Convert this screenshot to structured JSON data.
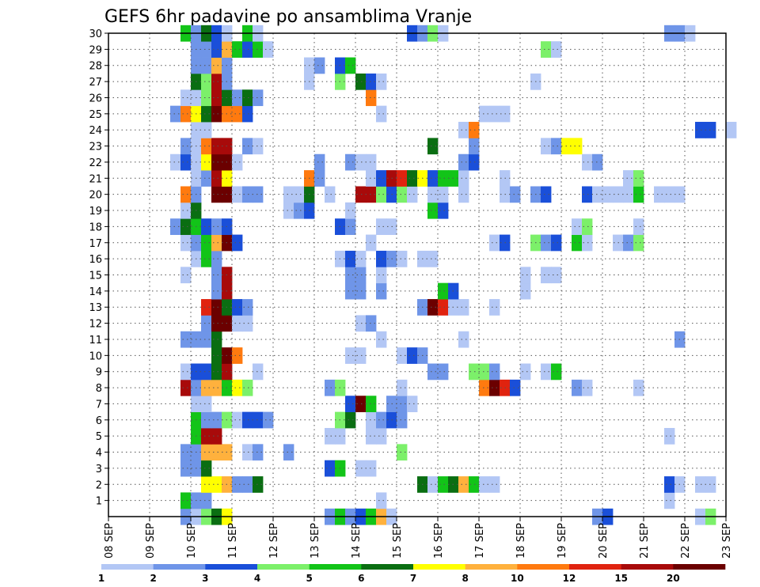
{
  "chart_data": {
    "type": "heatmap",
    "title": "GEFS 6hr padavine po ansamblima Vranje",
    "xlabel": "",
    "ylabel": "",
    "x_ticks": [
      "08 SEP",
      "09 SEP",
      "10 SEP",
      "11 SEP",
      "12 SEP",
      "13 SEP",
      "14 SEP",
      "15 SEP",
      "16 SEP",
      "17 SEP",
      "18 SEP",
      "19 SEP",
      "20 SEP",
      "21 SEP",
      "22 SEP",
      "23 SEP"
    ],
    "y_ticks": [
      "1",
      "2",
      "3",
      "4",
      "5",
      "6",
      "7",
      "8",
      "9",
      "10",
      "11",
      "12",
      "13",
      "14",
      "15",
      "16",
      "17",
      "18",
      "19",
      "20",
      "21",
      "22",
      "23",
      "24",
      "25",
      "26",
      "27",
      "28",
      "29",
      "30"
    ],
    "x_unit": "6-hour step from 08 SEP 00z (60 steps)",
    "ylim": [
      0,
      30
    ],
    "grid": true,
    "legend": "bottom colorbar",
    "colorbar": {
      "labels": [
        "1",
        "2",
        "3",
        "4",
        "5",
        "6",
        "7",
        "8",
        "10",
        "12",
        "15",
        "20"
      ],
      "colors": [
        "#b3c7f5",
        "#6f95e8",
        "#1a4fd9",
        "#7cf06a",
        "#12c418",
        "#0a6e12",
        "#ffff00",
        "#ffb13d",
        "#ff7a0f",
        "#e0230f",
        "#a80a0a",
        "#6b0000"
      ]
    },
    "cells": [
      [
        0,
        7,
        2
      ],
      [
        0,
        8,
        1
      ],
      [
        0,
        9,
        4
      ],
      [
        0,
        10,
        6
      ],
      [
        0,
        11,
        7
      ],
      [
        0,
        21,
        2
      ],
      [
        0,
        22,
        5
      ],
      [
        0,
        23,
        2
      ],
      [
        0,
        24,
        3
      ],
      [
        0,
        25,
        5
      ],
      [
        0,
        26,
        8
      ],
      [
        0,
        27,
        1
      ],
      [
        0,
        47,
        2
      ],
      [
        0,
        48,
        3
      ],
      [
        0,
        57,
        1
      ],
      [
        0,
        58,
        4
      ],
      [
        1,
        7,
        5
      ],
      [
        1,
        8,
        2
      ],
      [
        1,
        9,
        2
      ],
      [
        1,
        26,
        1
      ],
      [
        1,
        54,
        1
      ],
      [
        2,
        9,
        7
      ],
      [
        2,
        10,
        7
      ],
      [
        2,
        11,
        8
      ],
      [
        2,
        12,
        2
      ],
      [
        2,
        13,
        2
      ],
      [
        2,
        14,
        6
      ],
      [
        2,
        30,
        6
      ],
      [
        2,
        31,
        1
      ],
      [
        2,
        32,
        5
      ],
      [
        2,
        33,
        6
      ],
      [
        2,
        34,
        8
      ],
      [
        2,
        35,
        5
      ],
      [
        2,
        36,
        1
      ],
      [
        2,
        37,
        1
      ],
      [
        2,
        54,
        3
      ],
      [
        2,
        55,
        1
      ],
      [
        2,
        57,
        1
      ],
      [
        2,
        58,
        1
      ],
      [
        3,
        7,
        2
      ],
      [
        3,
        8,
        2
      ],
      [
        3,
        9,
        6
      ],
      [
        3,
        21,
        3
      ],
      [
        3,
        22,
        5
      ],
      [
        3,
        24,
        1
      ],
      [
        3,
        25,
        1
      ],
      [
        4,
        7,
        2
      ],
      [
        4,
        8,
        2
      ],
      [
        4,
        9,
        8
      ],
      [
        4,
        10,
        8
      ],
      [
        4,
        11,
        8
      ],
      [
        4,
        13,
        1
      ],
      [
        4,
        14,
        2
      ],
      [
        4,
        17,
        2
      ],
      [
        4,
        28,
        4
      ],
      [
        5,
        8,
        5
      ],
      [
        5,
        9,
        11
      ],
      [
        5,
        10,
        11
      ],
      [
        5,
        21,
        1
      ],
      [
        5,
        22,
        1
      ],
      [
        5,
        25,
        1
      ],
      [
        5,
        26,
        1
      ],
      [
        5,
        54,
        1
      ],
      [
        6,
        8,
        5
      ],
      [
        6,
        9,
        2
      ],
      [
        6,
        10,
        2
      ],
      [
        6,
        11,
        4
      ],
      [
        6,
        12,
        1
      ],
      [
        6,
        13,
        3
      ],
      [
        6,
        14,
        3
      ],
      [
        6,
        15,
        2
      ],
      [
        6,
        22,
        4
      ],
      [
        6,
        23,
        6
      ],
      [
        6,
        25,
        1
      ],
      [
        6,
        26,
        2
      ],
      [
        6,
        27,
        3
      ],
      [
        6,
        28,
        2
      ],
      [
        7,
        8,
        1
      ],
      [
        7,
        9,
        1
      ],
      [
        7,
        23,
        3
      ],
      [
        7,
        24,
        12
      ],
      [
        7,
        25,
        5
      ],
      [
        7,
        27,
        2
      ],
      [
        7,
        28,
        2
      ],
      [
        7,
        29,
        1
      ],
      [
        8,
        7,
        11
      ],
      [
        8,
        8,
        2
      ],
      [
        8,
        9,
        8
      ],
      [
        8,
        10,
        8
      ],
      [
        8,
        11,
        5
      ],
      [
        8,
        12,
        7
      ],
      [
        8,
        13,
        4
      ],
      [
        8,
        21,
        2
      ],
      [
        8,
        22,
        4
      ],
      [
        8,
        28,
        1
      ],
      [
        8,
        36,
        9
      ],
      [
        8,
        37,
        12
      ],
      [
        8,
        38,
        10
      ],
      [
        8,
        39,
        3
      ],
      [
        8,
        45,
        2
      ],
      [
        8,
        46,
        1
      ],
      [
        8,
        51,
        1
      ],
      [
        9,
        7,
        1
      ],
      [
        9,
        8,
        3
      ],
      [
        9,
        9,
        3
      ],
      [
        9,
        10,
        6
      ],
      [
        9,
        11,
        11
      ],
      [
        9,
        14,
        1
      ],
      [
        9,
        31,
        2
      ],
      [
        9,
        32,
        2
      ],
      [
        9,
        35,
        4
      ],
      [
        9,
        36,
        4
      ],
      [
        9,
        37,
        2
      ],
      [
        9,
        40,
        1
      ],
      [
        9,
        42,
        1
      ],
      [
        9,
        43,
        5
      ],
      [
        10,
        10,
        6
      ],
      [
        10,
        11,
        12
      ],
      [
        10,
        12,
        9
      ],
      [
        10,
        23,
        1
      ],
      [
        10,
        24,
        1
      ],
      [
        10,
        28,
        1
      ],
      [
        10,
        29,
        3
      ],
      [
        10,
        30,
        2
      ],
      [
        11,
        7,
        2
      ],
      [
        11,
        8,
        2
      ],
      [
        11,
        9,
        2
      ],
      [
        11,
        10,
        6
      ],
      [
        11,
        26,
        1
      ],
      [
        11,
        34,
        1
      ],
      [
        11,
        55,
        2
      ],
      [
        12,
        9,
        2
      ],
      [
        12,
        10,
        12
      ],
      [
        12,
        11,
        12
      ],
      [
        12,
        12,
        1
      ],
      [
        12,
        13,
        1
      ],
      [
        12,
        24,
        1
      ],
      [
        12,
        25,
        2
      ],
      [
        13,
        9,
        10
      ],
      [
        13,
        10,
        12
      ],
      [
        13,
        11,
        6
      ],
      [
        13,
        12,
        3
      ],
      [
        13,
        13,
        2
      ],
      [
        13,
        30,
        2
      ],
      [
        13,
        31,
        12
      ],
      [
        13,
        32,
        10
      ],
      [
        13,
        33,
        1
      ],
      [
        13,
        34,
        1
      ],
      [
        13,
        37,
        1
      ],
      [
        14,
        10,
        2
      ],
      [
        14,
        11,
        11
      ],
      [
        14,
        23,
        2
      ],
      [
        14,
        24,
        2
      ],
      [
        14,
        26,
        2
      ],
      [
        14,
        32,
        5
      ],
      [
        14,
        33,
        3
      ],
      [
        14,
        40,
        1
      ],
      [
        15,
        7,
        1
      ],
      [
        15,
        10,
        2
      ],
      [
        15,
        11,
        11
      ],
      [
        15,
        23,
        2
      ],
      [
        15,
        24,
        2
      ],
      [
        15,
        26,
        1
      ],
      [
        15,
        40,
        1
      ],
      [
        15,
        42,
        1
      ],
      [
        15,
        43,
        1
      ],
      [
        16,
        8,
        1
      ],
      [
        16,
        9,
        5
      ],
      [
        16,
        10,
        2
      ],
      [
        16,
        22,
        1
      ],
      [
        16,
        23,
        3
      ],
      [
        16,
        24,
        1
      ],
      [
        16,
        26,
        3
      ],
      [
        16,
        27,
        2
      ],
      [
        16,
        28,
        1
      ],
      [
        16,
        30,
        1
      ],
      [
        16,
        31,
        1
      ],
      [
        17,
        7,
        1
      ],
      [
        17,
        8,
        2
      ],
      [
        17,
        9,
        5
      ],
      [
        17,
        10,
        8
      ],
      [
        17,
        11,
        12
      ],
      [
        17,
        12,
        3
      ],
      [
        17,
        25,
        1
      ],
      [
        17,
        37,
        1
      ],
      [
        17,
        38,
        3
      ],
      [
        17,
        41,
        4
      ],
      [
        17,
        42,
        2
      ],
      [
        17,
        43,
        3
      ],
      [
        17,
        45,
        5
      ],
      [
        17,
        46,
        1
      ],
      [
        17,
        49,
        1
      ],
      [
        17,
        50,
        2
      ],
      [
        17,
        51,
        4
      ],
      [
        18,
        6,
        2
      ],
      [
        18,
        7,
        6
      ],
      [
        18,
        8,
        5
      ],
      [
        18,
        9,
        3
      ],
      [
        18,
        10,
        2
      ],
      [
        18,
        11,
        3
      ],
      [
        18,
        22,
        3
      ],
      [
        18,
        23,
        2
      ],
      [
        18,
        26,
        1
      ],
      [
        18,
        27,
        1
      ],
      [
        18,
        45,
        1
      ],
      [
        18,
        46,
        4
      ],
      [
        18,
        51,
        1
      ],
      [
        19,
        7,
        1
      ],
      [
        19,
        8,
        6
      ],
      [
        19,
        17,
        1
      ],
      [
        19,
        18,
        2
      ],
      [
        19,
        19,
        3
      ],
      [
        19,
        23,
        1
      ],
      [
        19,
        31,
        5
      ],
      [
        19,
        32,
        3
      ],
      [
        20,
        7,
        9
      ],
      [
        20,
        8,
        2
      ],
      [
        20,
        10,
        12
      ],
      [
        20,
        11,
        12
      ],
      [
        20,
        12,
        1
      ],
      [
        20,
        13,
        2
      ],
      [
        20,
        14,
        2
      ],
      [
        20,
        17,
        1
      ],
      [
        20,
        18,
        1
      ],
      [
        20,
        19,
        6
      ],
      [
        20,
        21,
        1
      ],
      [
        20,
        24,
        11
      ],
      [
        20,
        25,
        11
      ],
      [
        20,
        26,
        4
      ],
      [
        20,
        27,
        3
      ],
      [
        20,
        28,
        4
      ],
      [
        20,
        29,
        1
      ],
      [
        20,
        31,
        1
      ],
      [
        20,
        32,
        1
      ],
      [
        20,
        34,
        1
      ],
      [
        20,
        38,
        1
      ],
      [
        20,
        39,
        2
      ],
      [
        20,
        41,
        2
      ],
      [
        20,
        42,
        3
      ],
      [
        20,
        46,
        3
      ],
      [
        20,
        47,
        1
      ],
      [
        20,
        48,
        1
      ],
      [
        20,
        49,
        1
      ],
      [
        20,
        50,
        1
      ],
      [
        20,
        51,
        5
      ],
      [
        20,
        53,
        1
      ],
      [
        20,
        54,
        1
      ],
      [
        20,
        55,
        1
      ],
      [
        21,
        8,
        1
      ],
      [
        21,
        9,
        2
      ],
      [
        21,
        10,
        11
      ],
      [
        21,
        11,
        7
      ],
      [
        21,
        19,
        9
      ],
      [
        21,
        20,
        2
      ],
      [
        21,
        25,
        1
      ],
      [
        21,
        26,
        3
      ],
      [
        21,
        27,
        11
      ],
      [
        21,
        28,
        10
      ],
      [
        21,
        29,
        6
      ],
      [
        21,
        30,
        7
      ],
      [
        21,
        31,
        3
      ],
      [
        21,
        32,
        5
      ],
      [
        21,
        33,
        5
      ],
      [
        21,
        34,
        1
      ],
      [
        21,
        38,
        1
      ],
      [
        21,
        50,
        1
      ],
      [
        21,
        51,
        4
      ],
      [
        22,
        6,
        1
      ],
      [
        22,
        7,
        3
      ],
      [
        22,
        8,
        1
      ],
      [
        22,
        9,
        7
      ],
      [
        22,
        10,
        12
      ],
      [
        22,
        11,
        12
      ],
      [
        22,
        12,
        1
      ],
      [
        22,
        20,
        2
      ],
      [
        22,
        23,
        2
      ],
      [
        22,
        24,
        1
      ],
      [
        22,
        25,
        1
      ],
      [
        22,
        34,
        2
      ],
      [
        22,
        35,
        3
      ],
      [
        22,
        46,
        1
      ],
      [
        22,
        47,
        2
      ],
      [
        23,
        7,
        2
      ],
      [
        23,
        8,
        1
      ],
      [
        23,
        9,
        9
      ],
      [
        23,
        10,
        11
      ],
      [
        23,
        11,
        11
      ],
      [
        23,
        13,
        2
      ],
      [
        23,
        14,
        1
      ],
      [
        23,
        31,
        6
      ],
      [
        23,
        35,
        2
      ],
      [
        23,
        42,
        1
      ],
      [
        23,
        43,
        2
      ],
      [
        23,
        44,
        7
      ],
      [
        23,
        45,
        7
      ],
      [
        24,
        8,
        1
      ],
      [
        24,
        9,
        1
      ],
      [
        24,
        34,
        1
      ],
      [
        24,
        35,
        9
      ],
      [
        24,
        57,
        3
      ],
      [
        24,
        58,
        3
      ],
      [
        24,
        60,
        1
      ],
      [
        25,
        6,
        2
      ],
      [
        25,
        7,
        9
      ],
      [
        25,
        8,
        7
      ],
      [
        25,
        9,
        6
      ],
      [
        25,
        10,
        12
      ],
      [
        25,
        11,
        9
      ],
      [
        25,
        12,
        9
      ],
      [
        25,
        13,
        3
      ],
      [
        25,
        26,
        1
      ],
      [
        25,
        36,
        1
      ],
      [
        25,
        37,
        1
      ],
      [
        25,
        38,
        1
      ],
      [
        26,
        7,
        1
      ],
      [
        26,
        8,
        1
      ],
      [
        26,
        9,
        4
      ],
      [
        26,
        10,
        11
      ],
      [
        26,
        11,
        6
      ],
      [
        26,
        12,
        2
      ],
      [
        26,
        13,
        6
      ],
      [
        26,
        14,
        2
      ],
      [
        26,
        25,
        9
      ],
      [
        27,
        8,
        6
      ],
      [
        27,
        9,
        4
      ],
      [
        27,
        10,
        11
      ],
      [
        27,
        11,
        2
      ],
      [
        27,
        19,
        1
      ],
      [
        27,
        22,
        4
      ],
      [
        27,
        24,
        6
      ],
      [
        27,
        25,
        3
      ],
      [
        27,
        26,
        1
      ],
      [
        27,
        41,
        1
      ],
      [
        28,
        8,
        2
      ],
      [
        28,
        9,
        2
      ],
      [
        28,
        10,
        8
      ],
      [
        28,
        11,
        2
      ],
      [
        28,
        19,
        1
      ],
      [
        28,
        20,
        2
      ],
      [
        28,
        22,
        3
      ],
      [
        28,
        23,
        5
      ],
      [
        29,
        8,
        2
      ],
      [
        29,
        9,
        2
      ],
      [
        29,
        10,
        3
      ],
      [
        29,
        11,
        8
      ],
      [
        29,
        12,
        5
      ],
      [
        29,
        13,
        3
      ],
      [
        29,
        14,
        5
      ],
      [
        29,
        15,
        1
      ],
      [
        29,
        42,
        4
      ],
      [
        29,
        43,
        1
      ],
      [
        30,
        7,
        5
      ],
      [
        30,
        8,
        2
      ],
      [
        30,
        9,
        6
      ],
      [
        30,
        10,
        3
      ],
      [
        30,
        11,
        1
      ],
      [
        30,
        13,
        5
      ],
      [
        30,
        14,
        1
      ],
      [
        30,
        29,
        3
      ],
      [
        30,
        30,
        2
      ],
      [
        30,
        31,
        4
      ],
      [
        30,
        32,
        1
      ],
      [
        30,
        54,
        2
      ],
      [
        30,
        55,
        2
      ],
      [
        30,
        56,
        1
      ]
    ]
  }
}
